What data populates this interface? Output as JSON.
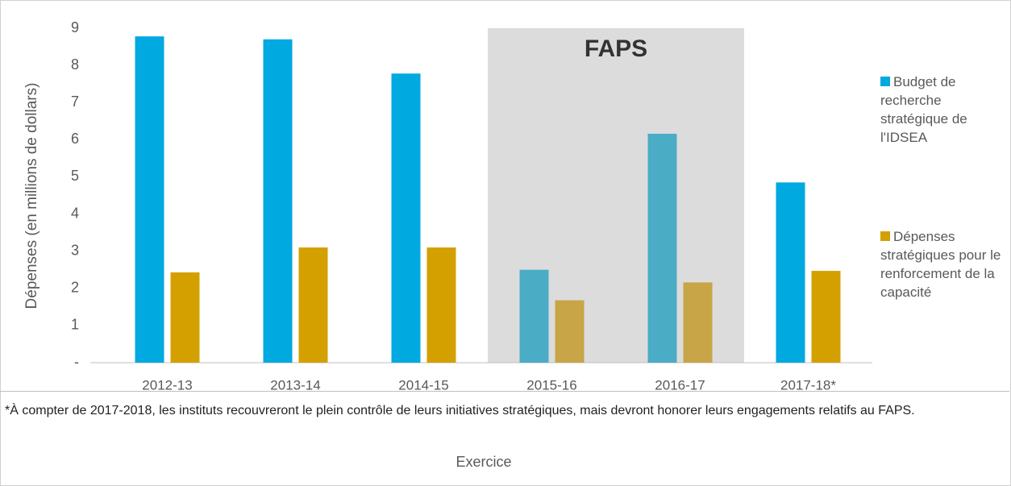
{
  "chart_data": {
    "type": "bar",
    "y_label": "Dépenses (en millions de dollars)",
    "x_label": "Exercice",
    "categories": [
      "2012-13",
      "2013-14",
      "2014-15",
      "2015-16",
      "2016-17",
      "2017-18*"
    ],
    "series": [
      {
        "name": "Budget de recherche stratégique de l'IDSEA",
        "color": "#00a9e0",
        "highlight_color": "#4bacc6",
        "values": [
          8.78,
          8.7,
          7.78,
          2.5,
          6.16,
          4.85
        ]
      },
      {
        "name": "Dépenses stratégiques pour le renforcement de la capacité",
        "color": "#d4a000",
        "highlight_color": "#c8a547",
        "values": [
          2.43,
          3.1,
          3.1,
          1.68,
          2.16,
          2.47
        ]
      }
    ],
    "highlight": {
      "label": "FAPS",
      "categories": [
        "2015-16",
        "2016-17"
      ],
      "color": "#dcdcdc"
    },
    "ylim": [
      0,
      9
    ],
    "yticks": [
      {
        "value": 0,
        "label": "-"
      },
      1,
      2,
      3,
      4,
      5,
      6,
      7,
      8,
      9
    ],
    "grid": false,
    "legend": "right",
    "footnote": "*À compter de 2017-2018, les instituts recouvreront le plein contrôle de leurs initiatives stratégiques, mais devront honorer leurs engagements relatifs au FAPS."
  }
}
